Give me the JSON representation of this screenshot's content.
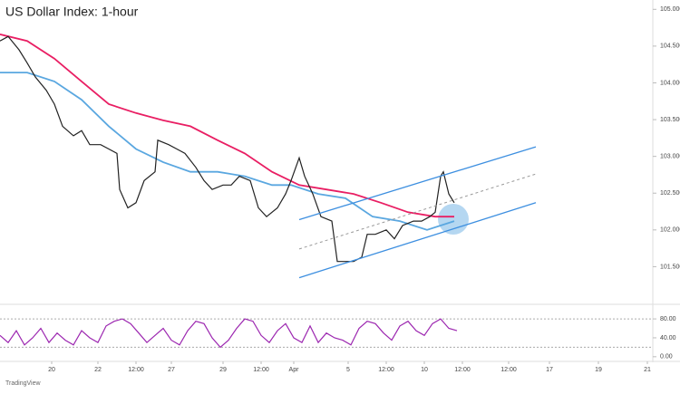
{
  "chart_data": [
    {
      "type": "line",
      "title": "US Dollar Index: 1-hour",
      "source": "TradingView",
      "xlim": [
        0,
        240
      ],
      "xticks": [
        {
          "value": 19,
          "label": "20"
        },
        {
          "value": 36,
          "label": "22"
        },
        {
          "value": 50,
          "label": "12:00"
        },
        {
          "value": 63,
          "label": "27"
        },
        {
          "value": 82,
          "label": "29"
        },
        {
          "value": 96,
          "label": "12:00"
        },
        {
          "value": 108,
          "label": "Apr"
        },
        {
          "value": 128,
          "label": "5"
        },
        {
          "value": 142,
          "label": "12:00"
        },
        {
          "value": 156,
          "label": "10"
        },
        {
          "value": 170,
          "label": "12:00"
        },
        {
          "value": 187,
          "label": "12:00"
        },
        {
          "value": 202,
          "label": "17"
        },
        {
          "value": 220,
          "label": "19"
        },
        {
          "value": 238,
          "label": "21"
        }
      ],
      "ylim": [
        101.0,
        105.09
      ],
      "yticks": [
        {
          "value": 101.5,
          "label": "101.500"
        },
        {
          "value": 102,
          "label": "102.000"
        },
        {
          "value": 102.5,
          "label": "102.500"
        },
        {
          "value": 103,
          "label": "103.000"
        },
        {
          "value": 103.5,
          "label": "103.500"
        },
        {
          "value": 104,
          "label": "104.000"
        },
        {
          "value": 104.5,
          "label": "104.500"
        },
        {
          "value": 105,
          "label": "105.000"
        }
      ],
      "series": [
        {
          "color": "#e91e63",
          "width": 1.8,
          "x": [
            0,
            10,
            20,
            30,
            40,
            50,
            60,
            70,
            80,
            90,
            100,
            110,
            120,
            130,
            140,
            150,
            160,
            167
          ],
          "values": [
            104.66,
            104.57,
            104.33,
            104.02,
            103.71,
            103.59,
            103.49,
            103.41,
            103.22,
            103.04,
            102.79,
            102.61,
            102.55,
            102.49,
            102.37,
            102.24,
            102.18,
            102.18
          ]
        },
        {
          "color": "#5aa7e0",
          "width": 1.8,
          "x": [
            0,
            10,
            20,
            30,
            40,
            50,
            60,
            70,
            80,
            90,
            100,
            107,
            117,
            127,
            137,
            147,
            157,
            167
          ],
          "values": [
            104.14,
            104.14,
            104.02,
            103.77,
            103.41,
            103.1,
            102.92,
            102.79,
            102.79,
            102.73,
            102.61,
            102.61,
            102.49,
            102.43,
            102.18,
            102.12,
            102.0,
            102.12
          ]
        },
        {
          "color": "#222222",
          "width": 1.2,
          "x": [
            0,
            3,
            7,
            10,
            13,
            17,
            20,
            23,
            27,
            30,
            33,
            37,
            40,
            43,
            44,
            47,
            50,
            53,
            57,
            58,
            62,
            65,
            68,
            72,
            75,
            78,
            82,
            85,
            88,
            92,
            95,
            98,
            102,
            105,
            107,
            110,
            112,
            115,
            118,
            122,
            124,
            127,
            130,
            133,
            135,
            138,
            142,
            145,
            148,
            152,
            155,
            158,
            160,
            162,
            163,
            165,
            167
          ],
          "values": [
            104.57,
            104.63,
            104.45,
            104.27,
            104.08,
            103.9,
            103.71,
            103.41,
            103.28,
            103.35,
            103.16,
            103.16,
            103.1,
            103.04,
            102.55,
            102.3,
            102.37,
            102.67,
            102.79,
            103.22,
            103.16,
            103.1,
            103.04,
            102.85,
            102.67,
            102.55,
            102.61,
            102.61,
            102.73,
            102.67,
            102.3,
            102.18,
            102.3,
            102.49,
            102.67,
            102.98,
            102.73,
            102.49,
            102.18,
            102.12,
            101.57,
            101.57,
            101.57,
            101.63,
            101.94,
            101.94,
            102.0,
            101.88,
            102.06,
            102.12,
            102.12,
            102.18,
            102.24,
            102.73,
            102.79,
            102.49,
            102.37
          ]
        },
        {
          "color": "#3d8fe0",
          "width": 1.3,
          "x": [
            110,
            197
          ],
          "values": [
            102.14,
            103.13
          ]
        },
        {
          "color": "#3d8fe0",
          "width": 1.3,
          "x": [
            110,
            197
          ],
          "values": [
            101.35,
            102.37
          ]
        },
        {
          "color": "#999999",
          "width": 1,
          "dash": true,
          "x": [
            110,
            197
          ],
          "values": [
            101.74,
            102.76
          ]
        }
      ]
    },
    {
      "type": "line",
      "xlim": [
        0,
        240
      ],
      "ylim": [
        -8,
        107
      ],
      "yticks": [
        {
          "value": 0,
          "label": "0.00"
        },
        {
          "value": 40,
          "label": "40.00"
        },
        {
          "value": 80,
          "label": "80.00"
        }
      ],
      "levels": [
        80,
        20
      ],
      "series": [
        {
          "color": "#9c27b0",
          "width": 1.2,
          "x": [
            0,
            3,
            6,
            9,
            12,
            15,
            18,
            21,
            24,
            27,
            30,
            33,
            36,
            39,
            42,
            45,
            48,
            51,
            54,
            57,
            60,
            63,
            66,
            69,
            72,
            75,
            78,
            81,
            84,
            87,
            90,
            93,
            96,
            99,
            102,
            105,
            108,
            111,
            114,
            117,
            120,
            123,
            126,
            129,
            132,
            135,
            138,
            141,
            144,
            147,
            150,
            153,
            156,
            159,
            162,
            165,
            168
          ],
          "values": [
            45,
            30,
            55,
            25,
            40,
            60,
            30,
            50,
            35,
            25,
            55,
            40,
            30,
            65,
            75,
            80,
            70,
            50,
            30,
            45,
            60,
            35,
            25,
            55,
            75,
            70,
            40,
            20,
            35,
            60,
            80,
            75,
            45,
            30,
            55,
            70,
            40,
            30,
            65,
            30,
            50,
            40,
            35,
            25,
            60,
            75,
            70,
            50,
            35,
            65,
            75,
            55,
            45,
            70,
            80,
            60,
            55
          ]
        }
      ]
    }
  ]
}
